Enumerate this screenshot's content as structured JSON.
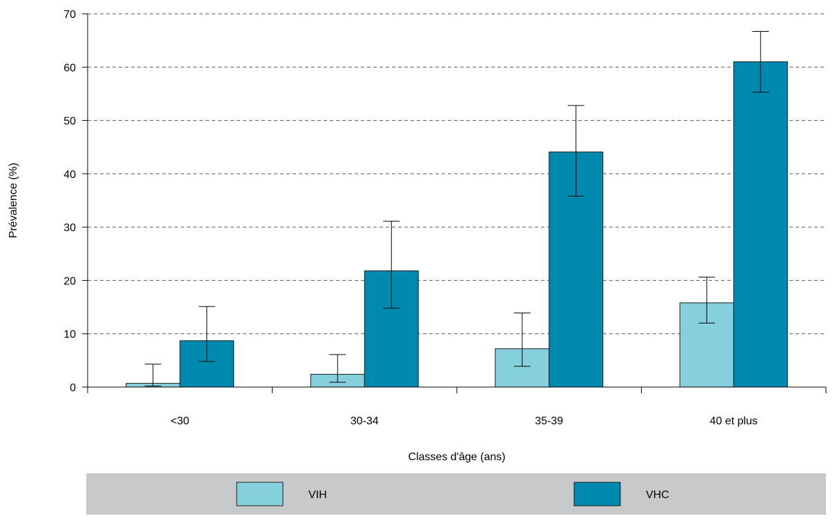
{
  "chart_data": {
    "type": "bar",
    "categories": [
      "<30",
      "30-34",
      "35-39",
      "40 et plus"
    ],
    "series": [
      {
        "name": "VIH",
        "color": "#85d0dc",
        "values": [
          0.7,
          2.4,
          7.2,
          15.8
        ],
        "error_low": [
          0.2,
          0.9,
          3.9,
          12.0
        ],
        "error_high": [
          4.3,
          6.1,
          13.9,
          20.6
        ]
      },
      {
        "name": "VHC",
        "color": "#0089ae",
        "values": [
          8.7,
          21.8,
          44.1,
          61.0
        ],
        "error_low": [
          4.8,
          14.8,
          35.8,
          55.3
        ],
        "error_high": [
          15.1,
          31.1,
          52.8,
          66.7
        ]
      }
    ],
    "xlabel": "Classes d'âge (ans)",
    "ylabel": "Prévalence (%)",
    "ylim": [
      0,
      70
    ],
    "yticks": [
      0,
      10,
      20,
      30,
      40,
      50,
      60,
      70
    ],
    "grid": "dashed horizontal",
    "legend_position": "bottom",
    "legend_background": "#c8c9ca"
  }
}
